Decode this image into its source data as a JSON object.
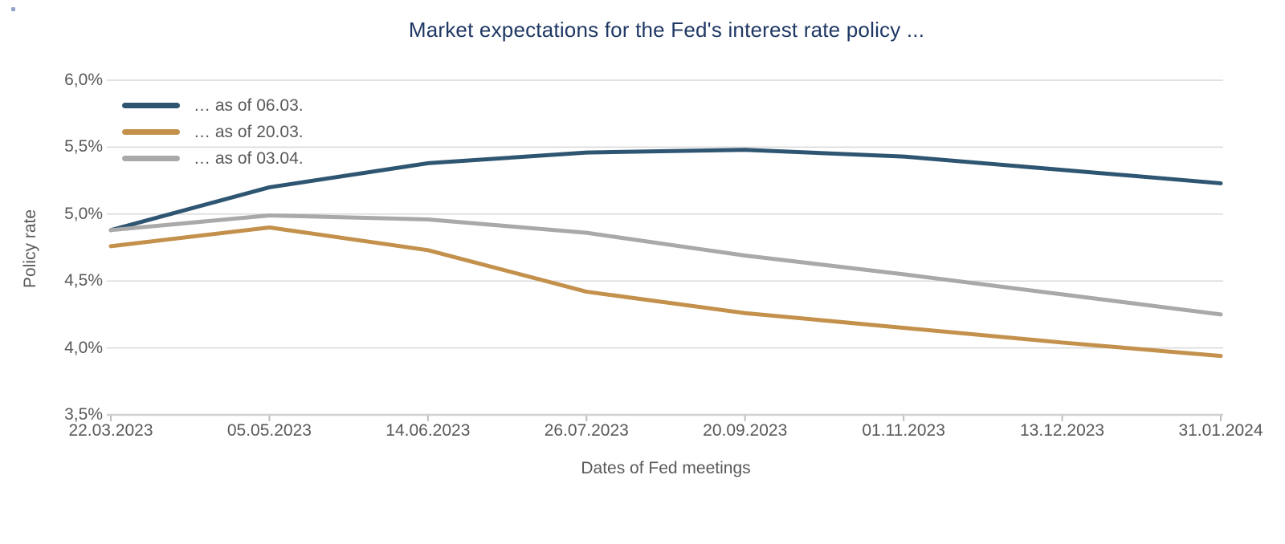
{
  "title": "Market expectations for the Fed's interest rate policy ...",
  "colors": {
    "title_text": "#1F3864",
    "axis_text": "#595959",
    "gridline": "#D9D9D9",
    "axis_line": "#D0D0D0",
    "tick_mark": "#BFBFBF",
    "series_blue": "#2E5571",
    "series_orange": "#C3914C",
    "series_gray": "#A9A9A9"
  },
  "chart_data": {
    "type": "line",
    "title": "Market expectations for the Fed's interest rate policy ...",
    "xlabel": "Dates of Fed meetings",
    "ylabel": "Policy rate",
    "categories": [
      "22.03.2023",
      "05.05.2023",
      "14.06.2023",
      "26.07.2023",
      "20.09.2023",
      "01.11.2023",
      "13.12.2023",
      "31.01.2024"
    ],
    "series": [
      {
        "name": "… as of 06.03.",
        "color": "#2E5571",
        "values": [
          4.88,
          5.2,
          5.38,
          5.46,
          5.48,
          5.43,
          5.33,
          5.23
        ]
      },
      {
        "name": "… as of 20.03.",
        "color": "#C3914C",
        "values": [
          4.76,
          4.9,
          4.73,
          4.42,
          4.26,
          4.15,
          4.04,
          3.94
        ]
      },
      {
        "name": "… as of 03.04.",
        "color": "#A9A9A9",
        "values": [
          4.88,
          4.99,
          4.96,
          4.86,
          4.69,
          4.55,
          4.4,
          4.25
        ]
      }
    ],
    "y_ticks": [
      {
        "label": "6,0%",
        "value": 6.0
      },
      {
        "label": "5,5%",
        "value": 5.5
      },
      {
        "label": "5,0%",
        "value": 5.0
      },
      {
        "label": "4,5%",
        "value": 4.5
      },
      {
        "label": "4,0%",
        "value": 4.0
      },
      {
        "label": "3,5%",
        "value": 3.5
      }
    ],
    "ylim": [
      3.5,
      6.0
    ],
    "grid": "horizontal",
    "legend_position": "top-left-inside"
  }
}
